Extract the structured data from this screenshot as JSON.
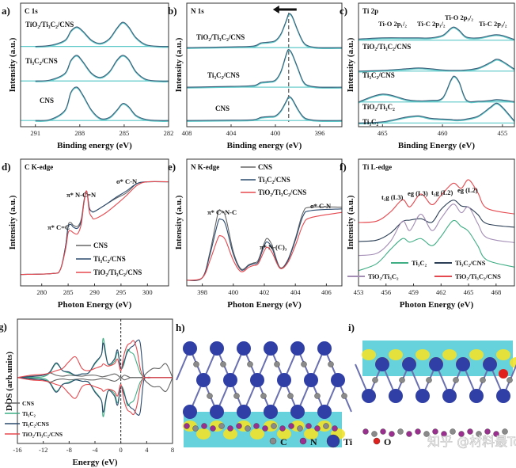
{
  "chart_data": [
    {
      "id": "a",
      "panel_label": "a)",
      "type": "line",
      "title": "C 1s",
      "xlabel": "Binding energy (eV)",
      "ylabel": "Intensity (a.u.)",
      "xlim": [
        292,
        282
      ],
      "reversed_x": true,
      "xticks": [
        291,
        288,
        285,
        282
      ],
      "grid": false,
      "stacked": true,
      "x": [
        291,
        290,
        289,
        288.6,
        288.2,
        287.8,
        287.2,
        286.6,
        286,
        285.5,
        285.1,
        284.7,
        284.2,
        283.5,
        282.5,
        282
      ],
      "series": [
        {
          "name": "TiO₂/Ti₃C₂/CNS",
          "color": "#3f5f7a",
          "values": [
            0,
            0.02,
            0.12,
            0.3,
            0.38,
            0.3,
            0.12,
            0.06,
            0.15,
            0.35,
            0.47,
            0.38,
            0.17,
            0.03,
            0,
            0
          ]
        },
        {
          "name": "Ti₃C₂/CNS",
          "color": "#3f5f7a",
          "values": [
            0,
            0.02,
            0.15,
            0.4,
            0.5,
            0.38,
            0.15,
            0.07,
            0.18,
            0.4,
            0.5,
            0.42,
            0.18,
            0.03,
            0,
            0
          ]
        },
        {
          "name": "CNS",
          "color": "#3f5f7a",
          "values": [
            0,
            0.02,
            0.2,
            0.55,
            0.65,
            0.5,
            0.2,
            0.04,
            0.06,
            0.2,
            0.33,
            0.27,
            0.1,
            0.02,
            0,
            0
          ]
        }
      ],
      "annotations": []
    },
    {
      "id": "b",
      "panel_label": "b)",
      "type": "line",
      "title": "N 1s",
      "xlabel": "Binding energy (eV)",
      "ylabel": "Intensity (a.u.)",
      "xlim": [
        408,
        394
      ],
      "reversed_x": true,
      "xticks": [
        408,
        404,
        400,
        396
      ],
      "grid": false,
      "stacked": true,
      "x": [
        408,
        404,
        402,
        401.3,
        400.6,
        400,
        399.5,
        399,
        398.8,
        398.5,
        398,
        397.5,
        397,
        396,
        394
      ],
      "series": [
        {
          "name": "TiO₂/Ti₃C₂/CNS",
          "color": "#3f5f7a",
          "values": [
            0,
            0.02,
            0.04,
            0.12,
            0.14,
            0.18,
            0.35,
            0.7,
            0.85,
            0.8,
            0.45,
            0.15,
            0.04,
            0,
            0
          ]
        },
        {
          "name": "Ti₃C₂/CNS",
          "color": "#3f5f7a",
          "values": [
            0,
            0.02,
            0.04,
            0.12,
            0.14,
            0.18,
            0.4,
            0.85,
            0.95,
            0.85,
            0.5,
            0.15,
            0.04,
            0,
            0
          ]
        },
        {
          "name": "CNS",
          "color": "#3f5f7a",
          "values": [
            0,
            0.01,
            0.02,
            0.08,
            0.1,
            0.12,
            0.25,
            0.5,
            0.6,
            0.55,
            0.3,
            0.1,
            0.03,
            0,
            0
          ]
        }
      ],
      "reference_line_x": 398.8,
      "annotations": []
    },
    {
      "id": "c",
      "panel_label": "c)",
      "type": "line",
      "title": "Ti 2p",
      "xlabel": "Binding Energy (eV)",
      "ylabel": "Intensity (a.u.)",
      "xlim": [
        467,
        454
      ],
      "reversed_x": true,
      "xticks": [
        465,
        460,
        455
      ],
      "grid": false,
      "stacked": true,
      "x": [
        467,
        465,
        463,
        462,
        461,
        460,
        459.3,
        459,
        458.6,
        458,
        457,
        456,
        455.5,
        455,
        454
      ],
      "series": [
        {
          "name": "TiO₂/Ti₃C₂/CNS",
          "color": "#3f5f7a",
          "values": [
            0.03,
            0.06,
            0.06,
            0.06,
            0.06,
            0.12,
            0.3,
            0.33,
            0.25,
            0.08,
            0.06,
            0.12,
            0.14,
            0.12,
            0.02
          ]
        },
        {
          "name": "Ti₃C₂/CNS",
          "color": "#3f5f7a",
          "values": [
            0,
            0.02,
            0.06,
            0.08,
            0.06,
            0.03,
            0.02,
            0.02,
            0.02,
            0.03,
            0.08,
            0.22,
            0.3,
            0.25,
            0.05
          ]
        },
        {
          "name": "TiO₂/Ti₃C₂",
          "color": "#3f5f7a",
          "values": [
            0,
            0.2,
            0.06,
            0.03,
            0.04,
            0.1,
            0.55,
            0.65,
            0.5,
            0.05,
            0.02,
            0.04,
            0.06,
            0.05,
            0.01
          ]
        },
        {
          "name": "Ti₃C₂",
          "color": "#3f5f7a",
          "values": [
            0,
            0.03,
            0.15,
            0.18,
            0.12,
            0.1,
            0.09,
            0.08,
            0.08,
            0.1,
            0.18,
            0.4,
            0.5,
            0.4,
            0.05
          ]
        }
      ],
      "annotations": [
        "Ti-O 2p₁/₂",
        "Ti-C 2p₁/₂",
        "Ti-O 2p₃/₂",
        "Ti-C 2p₃/₂"
      ]
    },
    {
      "id": "d",
      "panel_label": "d)",
      "type": "line",
      "title": "C K-edge",
      "xlabel": "Photon Energy (eV)",
      "ylabel": "Intensity (a.u.)",
      "xlim": [
        276,
        304
      ],
      "xticks": [
        280,
        285,
        290,
        295,
        300
      ],
      "grid": false,
      "legend": "bottom-right",
      "x": [
        276,
        282,
        283.5,
        284.5,
        285,
        285.5,
        286,
        286.8,
        287.5,
        288,
        288.5,
        289,
        289.5,
        290,
        292,
        294,
        296,
        298,
        300,
        304
      ],
      "series": [
        {
          "name": "CNS",
          "color": "#666666",
          "values": [
            0,
            0.01,
            0.05,
            0.3,
            0.53,
            0.56,
            0.53,
            0.52,
            0.6,
            0.8,
            0.9,
            0.72,
            0.68,
            0.68,
            0.75,
            0.82,
            0.88,
            0.98,
            1,
            1
          ]
        },
        {
          "name": "Ti₃C₂/CNS",
          "color": "#2b4a6e",
          "values": [
            0,
            0.01,
            0.05,
            0.3,
            0.51,
            0.54,
            0.51,
            0.5,
            0.58,
            0.78,
            0.9,
            0.72,
            0.68,
            0.68,
            0.75,
            0.83,
            0.9,
            0.98,
            1,
            1
          ]
        },
        {
          "name": "TiO₂/Ti₃C₂/CNS",
          "color": "#e5494f",
          "values": [
            0,
            0.01,
            0.05,
            0.27,
            0.45,
            0.47,
            0.45,
            0.44,
            0.55,
            0.78,
            0.9,
            0.68,
            0.62,
            0.6,
            0.66,
            0.75,
            0.85,
            0.96,
            1,
            1
          ]
        }
      ],
      "annotations": [
        "π* C=C",
        "π* N-C=N",
        "σ* C-N"
      ]
    },
    {
      "id": "e",
      "panel_label": "e)",
      "type": "line",
      "title": "N K-edge",
      "xlabel": "Photon Energy (eV)",
      "ylabel": "Intensity (a.u.)",
      "xlim": [
        397,
        407
      ],
      "xticks": [
        398,
        400,
        402,
        404,
        406
      ],
      "grid": false,
      "legend": "top-right",
      "x": [
        397,
        398,
        398.5,
        399,
        399.2,
        399.5,
        400,
        400.5,
        401,
        401.3,
        401.6,
        402,
        402.2,
        402.5,
        403,
        403.5,
        404,
        404.5,
        405,
        407
      ],
      "series": [
        {
          "name": "CNS",
          "color": "#666666",
          "values": [
            0.02,
            0.05,
            0.35,
            0.78,
            0.82,
            0.75,
            0.35,
            0.15,
            0.2,
            0.22,
            0.25,
            0.45,
            0.5,
            0.42,
            0.17,
            0.25,
            0.5,
            0.8,
            0.86,
            0.86
          ]
        },
        {
          "name": "Ti₃C₂/CNS",
          "color": "#2b4a6e",
          "values": [
            0.02,
            0.05,
            0.32,
            0.68,
            0.72,
            0.66,
            0.32,
            0.14,
            0.19,
            0.21,
            0.23,
            0.42,
            0.46,
            0.39,
            0.16,
            0.24,
            0.48,
            0.76,
            0.82,
            0.84
          ]
        },
        {
          "name": "TiO₂/Ti₃C₂/CNS",
          "color": "#e5494f",
          "values": [
            0.02,
            0.05,
            0.25,
            0.5,
            0.53,
            0.48,
            0.25,
            0.12,
            0.17,
            0.19,
            0.21,
            0.36,
            0.4,
            0.34,
            0.16,
            0.22,
            0.42,
            0.66,
            0.74,
            0.8
          ]
        }
      ],
      "annotations": [
        "π* C=N-C",
        "π* N-(C)₃",
        "σ* C-N"
      ]
    },
    {
      "id": "f",
      "panel_label": "f)",
      "type": "line",
      "title": "Ti L-edge",
      "xlabel": "Photon Energy (eV)",
      "ylabel": "Intensity (a.u.)",
      "xlim": [
        453,
        470
      ],
      "xticks": [
        453,
        456,
        459,
        462,
        465,
        468
      ],
      "grid": false,
      "stacked": true,
      "legend": "bottom",
      "x": [
        453,
        455,
        456.5,
        457.8,
        458.6,
        459.8,
        461,
        462,
        463.3,
        464.2,
        465,
        466,
        467,
        470
      ],
      "series": [
        {
          "name": "TiO₂/Ti₃C₂/CNS",
          "color": "#e5494f",
          "values": [
            0,
            0.02,
            0.15,
            0.32,
            0.22,
            0.4,
            0.25,
            0.38,
            0.55,
            0.48,
            0.6,
            0.42,
            0.2,
            0.12
          ]
        },
        {
          "name": "Ti₃C₂/CNS",
          "color": "#2b3e55",
          "values": [
            0,
            0.02,
            0.12,
            0.28,
            0.3,
            0.32,
            0.27,
            0.45,
            0.58,
            0.5,
            0.48,
            0.38,
            0.25,
            0.2
          ]
        },
        {
          "name": "TiO₂/Ti₃C₂",
          "color": "#a38db5",
          "values": [
            0,
            0.03,
            0.2,
            0.48,
            0.35,
            0.58,
            0.35,
            0.52,
            0.72,
            0.6,
            0.68,
            0.45,
            0.25,
            0.18
          ]
        },
        {
          "name": "Ti₃C₂",
          "color": "#3fae85",
          "values": [
            0,
            0.1,
            0.3,
            0.45,
            0.4,
            0.45,
            0.35,
            0.48,
            0.7,
            0.62,
            0.55,
            0.35,
            0.15,
            0.05
          ]
        }
      ],
      "annotations": [
        "t₂g (L3)",
        "eg (L3)",
        "t₂g (L2)",
        "eg (L2)"
      ]
    },
    {
      "id": "g",
      "panel_label": "g)",
      "type": "line",
      "title": "",
      "xlabel": "Energy (eV)",
      "ylabel": "DOS (arb.units)",
      "xlim": [
        -16,
        8
      ],
      "xticks": [
        -16,
        -12,
        -8,
        -4,
        0,
        4,
        8
      ],
      "grid": false,
      "legend": "bottom-left",
      "fermi_level_x": 0,
      "spin_symmetric": true,
      "x": [
        -16,
        -14,
        -12,
        -11,
        -10,
        -9,
        -8,
        -7,
        -6,
        -5,
        -4,
        -3,
        -2.7,
        -2,
        -1,
        -0.5,
        0,
        0.5,
        1,
        1.5,
        2,
        2.5,
        3,
        3.5,
        4,
        5,
        6,
        7,
        8
      ],
      "series": [
        {
          "name": "CNS",
          "color": "#666666",
          "values": [
            0,
            0.03,
            0.05,
            0.1,
            0.05,
            0.03,
            0.05,
            0.04,
            0.03,
            0.05,
            0.05,
            0.02,
            0.02,
            0.04,
            0.08,
            0.05,
            0,
            0.05,
            0.03,
            0,
            0,
            0,
            0,
            0.02,
            0.1,
            0.2,
            0.2,
            0.3,
            0
          ]
        },
        {
          "name": "Ti₃C₂",
          "color": "#3fae85",
          "values": [
            0,
            0,
            0.02,
            0.1,
            0.3,
            0.15,
            0.1,
            0.05,
            0.08,
            0.1,
            0.3,
            0.5,
            0.85,
            0.3,
            0.35,
            0.55,
            0.2,
            0.3,
            0.6,
            0.55,
            0.5,
            0.3,
            0.1,
            0.02,
            0,
            0,
            0,
            0,
            0
          ]
        },
        {
          "name": "Ti₃C₂/CNS",
          "color": "#2b4a6e",
          "values": [
            0,
            0.02,
            0.05,
            0.12,
            0.32,
            0.15,
            0.12,
            0.05,
            0.08,
            0.1,
            0.32,
            0.5,
            0.75,
            0.3,
            0.4,
            0.6,
            0.2,
            0.35,
            0.55,
            0.65,
            0.7,
            0.8,
            0.75,
            0.1,
            0,
            0,
            0,
            0,
            0
          ]
        },
        {
          "name": "TiO₂/Ti₃C₂/CNS",
          "color": "#e5494f",
          "values": [
            0,
            0.05,
            0.07,
            0.1,
            0.15,
            0.2,
            0.35,
            0.45,
            0.2,
            0.15,
            0.2,
            0.25,
            0.3,
            0.25,
            0.3,
            0.4,
            0.15,
            0.5,
            0.7,
            0.75,
            0.8,
            0.6,
            0.2,
            0.02,
            0,
            0,
            0,
            0,
            0
          ]
        }
      ],
      "annotations": []
    }
  ],
  "structures": {
    "h_label": "h)",
    "i_label": "i)",
    "legend": [
      {
        "label": "C",
        "color": "#8a8a8a"
      },
      {
        "label": "N",
        "color": "#9b2f8f"
      },
      {
        "label": "Ti",
        "color": "#2f3fa6"
      },
      {
        "label": "O",
        "color": "#e0201c"
      }
    ],
    "isosurface_colors": {
      "accumulation": "#f2e22a",
      "depletion": "#33c3d0"
    }
  },
  "watermark": "知乎 @材料最Top"
}
